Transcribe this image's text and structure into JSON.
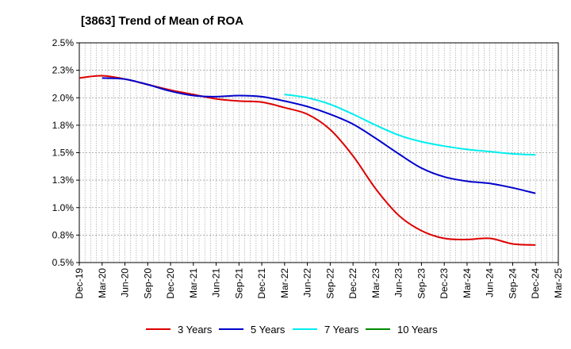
{
  "chart_data": {
    "type": "line",
    "title": "[3863]  Trend of Mean of ROA",
    "xlabel": "",
    "ylabel": "",
    "categories": [
      "Dec-19",
      "Mar-20",
      "Jun-20",
      "Sep-20",
      "Dec-20",
      "Mar-21",
      "Jun-21",
      "Sep-21",
      "Dec-21",
      "Mar-22",
      "Jun-22",
      "Sep-22",
      "Dec-22",
      "Mar-23",
      "Jun-23",
      "Sep-23",
      "Dec-23",
      "Mar-24",
      "Jun-24",
      "Sep-24",
      "Dec-24",
      "Mar-25"
    ],
    "y_ticks": [
      "0.5%",
      "0.8%",
      "1.0%",
      "1.3%",
      "1.5%",
      "1.8%",
      "2.0%",
      "2.3%",
      "2.5%"
    ],
    "ylim": [
      0.5,
      2.5
    ],
    "grid": true,
    "legend_position": "bottom",
    "series": [
      {
        "name": "3 Years",
        "color": "#dd0000",
        "values": [
          2.18,
          2.2,
          2.17,
          2.12,
          2.07,
          2.03,
          1.99,
          1.97,
          1.96,
          1.91,
          1.85,
          1.71,
          1.47,
          1.17,
          0.93,
          0.79,
          0.72,
          0.71,
          0.72,
          0.67,
          0.66,
          null
        ]
      },
      {
        "name": "5 Years",
        "color": "#0000cc",
        "values": [
          null,
          2.18,
          2.17,
          2.12,
          2.06,
          2.02,
          2.01,
          2.02,
          2.01,
          1.97,
          1.92,
          1.85,
          1.76,
          1.63,
          1.49,
          1.36,
          1.28,
          1.24,
          1.22,
          1.18,
          1.13,
          null
        ]
      },
      {
        "name": "7 Years",
        "color": "#00eeee",
        "values": [
          null,
          null,
          null,
          null,
          null,
          null,
          null,
          null,
          null,
          2.03,
          2.0,
          1.94,
          1.85,
          1.75,
          1.66,
          1.6,
          1.56,
          1.53,
          1.51,
          1.49,
          1.48,
          null
        ]
      },
      {
        "name": "10 Years",
        "color": "#008800",
        "values": [
          null,
          null,
          null,
          null,
          null,
          null,
          null,
          null,
          null,
          null,
          null,
          null,
          null,
          null,
          null,
          null,
          null,
          null,
          null,
          null,
          null,
          null
        ]
      }
    ]
  }
}
